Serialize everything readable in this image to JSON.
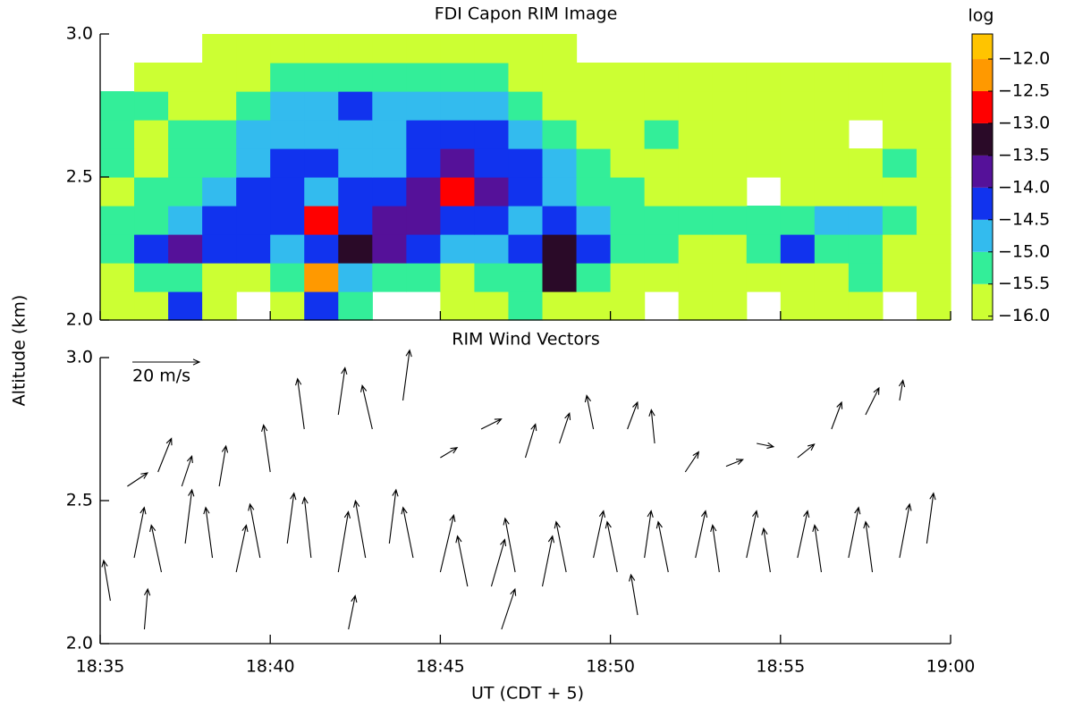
{
  "chart_data": [
    {
      "type": "contour",
      "title": "FDI Capon RIM Image",
      "ylabel": "Altitude (km)",
      "xlim": [
        35,
        60
      ],
      "xticks": [
        35,
        40,
        45,
        50,
        55,
        60
      ],
      "ylim": [
        2,
        3
      ],
      "yticks": [
        {
          "value": 2,
          "label": "2.0"
        },
        {
          "value": 2.5,
          "label": "2.5"
        },
        {
          "value": 3,
          "label": "3.0"
        }
      ],
      "x": [
        35.5,
        36.5,
        37.5,
        38.5,
        39.5,
        40.5,
        41.5,
        42.5,
        43.5,
        44.5,
        45.5,
        46.5,
        47.5,
        48.5,
        49.5,
        50.5,
        51.5,
        52.5,
        53.5,
        54.5,
        55.5,
        56.5,
        57.5,
        58.5,
        59.5
      ],
      "y": [
        2.05,
        2.15,
        2.25,
        2.35,
        2.45,
        2.55,
        2.65,
        2.75,
        2.85,
        2.95
      ],
      "z": [
        [
          -15.8,
          -15.8,
          -14.3,
          -15.8,
          null,
          -15.8,
          -14.3,
          -15.3,
          null,
          null,
          -15.8,
          -15.8,
          -15.3,
          -15.8,
          -15.8,
          -15.8,
          null,
          -15.8,
          -15.8,
          null,
          -15.8,
          -15.8,
          -15.8,
          null,
          -15.8
        ],
        [
          -15.8,
          -15.3,
          -15.3,
          -15.8,
          -15.8,
          -15.3,
          -12.3,
          -14.8,
          -15.3,
          -15.3,
          -15.8,
          -15.3,
          -15.3,
          -13.3,
          -15.3,
          -15.8,
          -15.8,
          -15.8,
          -15.8,
          -15.8,
          -15.8,
          -15.8,
          -15.3,
          -15.8,
          -15.8
        ],
        [
          -15.3,
          -14.3,
          -13.8,
          -14.3,
          -14.3,
          -14.8,
          -14.3,
          -13.3,
          -13.8,
          -14.3,
          -14.8,
          -14.8,
          -14.3,
          -13.3,
          -14.3,
          -15.3,
          -15.3,
          -15.8,
          -15.8,
          -15.3,
          -14.3,
          -15.3,
          -15.3,
          -15.8,
          -15.8
        ],
        [
          -15.3,
          -15.3,
          -14.8,
          -14.3,
          -14.3,
          -14.3,
          -12.8,
          -14.3,
          -13.8,
          -13.8,
          -14.3,
          -14.3,
          -14.8,
          -14.3,
          -14.8,
          -15.3,
          -15.3,
          -15.3,
          -15.3,
          -15.3,
          -15.3,
          -14.8,
          -14.8,
          -15.3,
          -15.8
        ],
        [
          -15.8,
          -15.3,
          -15.3,
          -14.8,
          -14.3,
          -14.3,
          -14.8,
          -14.3,
          -14.3,
          -13.8,
          -12.8,
          -13.8,
          -14.3,
          -14.8,
          -15.3,
          -15.3,
          -15.8,
          -15.8,
          -15.8,
          null,
          -15.8,
          -15.8,
          -15.8,
          -15.8,
          -15.8
        ],
        [
          -15.3,
          -15.8,
          -15.3,
          -15.3,
          -14.8,
          -14.3,
          -14.3,
          -14.8,
          -14.8,
          -14.3,
          -13.8,
          -14.3,
          -14.3,
          -14.8,
          -15.3,
          -15.8,
          -15.8,
          -15.8,
          -15.8,
          -15.8,
          -15.8,
          -15.8,
          -15.8,
          -15.3,
          -15.8
        ],
        [
          -15.3,
          -15.8,
          -15.3,
          -15.3,
          -14.8,
          -14.8,
          -14.8,
          -14.8,
          -14.8,
          -14.3,
          -14.3,
          -14.3,
          -14.8,
          -15.3,
          -15.8,
          -15.8,
          -15.3,
          -15.8,
          -15.8,
          -15.8,
          -15.8,
          -15.8,
          null,
          -15.8,
          -15.8
        ],
        [
          -15.3,
          -15.3,
          -15.8,
          -15.8,
          -15.3,
          -14.8,
          -14.8,
          -14.3,
          -14.8,
          -14.8,
          -14.8,
          -14.8,
          -15.3,
          -15.8,
          -15.8,
          -15.8,
          -15.8,
          -15.8,
          -15.8,
          -15.8,
          -15.8,
          -15.8,
          -15.8,
          -15.8,
          -15.8
        ],
        [
          null,
          -15.8,
          -15.8,
          -15.8,
          -15.8,
          -15.3,
          -15.3,
          -15.3,
          -15.3,
          -15.3,
          -15.3,
          -15.3,
          -15.8,
          -15.8,
          -15.8,
          -15.8,
          -15.8,
          -15.8,
          -15.8,
          -15.8,
          -15.8,
          -15.8,
          -15.8,
          -15.8,
          -15.8
        ],
        [
          null,
          null,
          null,
          -15.8,
          -15.8,
          -15.8,
          -15.8,
          -15.8,
          -15.8,
          -15.8,
          -15.8,
          -15.8,
          -15.8,
          -15.8,
          null,
          null,
          null,
          null,
          null,
          null,
          null,
          null,
          null,
          null,
          null
        ]
      ],
      "colorbar": {
        "title": "log",
        "clim": [
          -16.06,
          -11.61
        ],
        "levels": [
          -16,
          -15.5,
          -15,
          -14.5,
          -14,
          -13.5,
          -13,
          -12.5,
          -12
        ],
        "colors": [
          "#ccff33",
          "#33ee99",
          "#33bbee",
          "#1133ee",
          "#551199",
          "#2a0a28",
          "#ff0000",
          "#ff9900",
          "#ffc400"
        ],
        "ticks": [
          {
            "value": -12,
            "label": "−12.0"
          },
          {
            "value": -12.5,
            "label": "−12.5"
          },
          {
            "value": -13,
            "label": "−13.0"
          },
          {
            "value": -13.5,
            "label": "−13.5"
          },
          {
            "value": -14,
            "label": "−14.0"
          },
          {
            "value": -14.5,
            "label": "−14.5"
          },
          {
            "value": -15,
            "label": "−15.0"
          },
          {
            "value": -15.5,
            "label": "−15.5"
          },
          {
            "value": -16,
            "label": "−16.0"
          }
        ]
      }
    },
    {
      "type": "vector",
      "title": "RIM Wind Vectors",
      "xlabel": "UT  (CDT + 5)",
      "xlim": [
        35,
        60
      ],
      "xticks": [
        {
          "value": 35,
          "label": "18:35"
        },
        {
          "value": 40,
          "label": "18:40"
        },
        {
          "value": 45,
          "label": "18:45"
        },
        {
          "value": 50,
          "label": "18:50"
        },
        {
          "value": 55,
          "label": "18:55"
        },
        {
          "value": 60,
          "label": "19:00"
        }
      ],
      "ylim": [
        2,
        3
      ],
      "yticks": [
        {
          "value": 2,
          "label": "2.0"
        },
        {
          "value": 2.5,
          "label": "2.5"
        },
        {
          "value": 3,
          "label": "3.0"
        }
      ],
      "reference": {
        "value": 20,
        "label": "20 m/s"
      },
      "vectors": {
        "x": [
          35.3,
          36,
          36.8,
          37.5,
          38.3,
          39,
          39.7,
          40.5,
          41.2,
          42,
          42.8,
          43.5,
          44.2,
          45,
          45.8,
          46.5,
          47.2,
          48,
          48.7,
          49.5,
          50.2,
          51,
          51.7,
          52.5,
          53.2,
          54,
          54.7,
          55.5,
          56.2,
          57,
          57.7,
          58.5,
          59.3,
          35.8,
          36.7,
          37.4,
          38.5,
          40,
          41,
          42,
          43,
          43.9,
          45,
          46.2,
          47.5,
          48.5,
          49.5,
          50.5,
          51.3,
          52.2,
          53.4,
          54.3,
          55.5,
          56.5,
          57.5,
          58.5,
          36.3,
          42.3,
          46.8,
          50.8
        ],
        "y": [
          2.15,
          2.3,
          2.25,
          2.35,
          2.3,
          2.25,
          2.3,
          2.35,
          2.3,
          2.25,
          2.3,
          2.35,
          2.3,
          2.25,
          2.2,
          2.2,
          2.25,
          2.2,
          2.25,
          2.3,
          2.25,
          2.3,
          2.25,
          2.3,
          2.25,
          2.3,
          2.25,
          2.3,
          2.25,
          2.3,
          2.25,
          2.3,
          2.35,
          2.55,
          2.6,
          2.55,
          2.55,
          2.6,
          2.75,
          2.8,
          2.75,
          2.85,
          2.65,
          2.75,
          2.65,
          2.7,
          2.75,
          2.75,
          2.7,
          2.6,
          2.62,
          2.7,
          2.65,
          2.75,
          2.8,
          2.85,
          2.05,
          2.05,
          2.05,
          2.1
        ],
        "u": [
          -2,
          3,
          -3,
          2,
          -2,
          3,
          -3,
          2,
          -2,
          3,
          -3,
          2,
          -3,
          4,
          -3,
          4,
          -3,
          3,
          -3,
          3,
          -3,
          2,
          -3,
          3,
          -2,
          3,
          -2,
          3,
          -2,
          3,
          -2,
          3,
          2,
          6,
          4,
          3,
          2,
          -2,
          -2,
          2,
          -3,
          2,
          5,
          6,
          3,
          3,
          -2,
          3,
          -1,
          4,
          5,
          5,
          5,
          3,
          4,
          1,
          1,
          2,
          4,
          -2
        ],
        "v": [
          12,
          15,
          14,
          16,
          15,
          14,
          16,
          15,
          18,
          18,
          17,
          16,
          15,
          17,
          15,
          14,
          16,
          15,
          15,
          14,
          15,
          14,
          15,
          14,
          14,
          14,
          13,
          14,
          14,
          15,
          15,
          16,
          15,
          4,
          10,
          9,
          12,
          14,
          15,
          14,
          13,
          15,
          3,
          3,
          10,
          9,
          10,
          8,
          10,
          6,
          2,
          -1,
          4,
          8,
          8,
          6,
          12,
          10,
          12,
          12
        ]
      }
    }
  ]
}
